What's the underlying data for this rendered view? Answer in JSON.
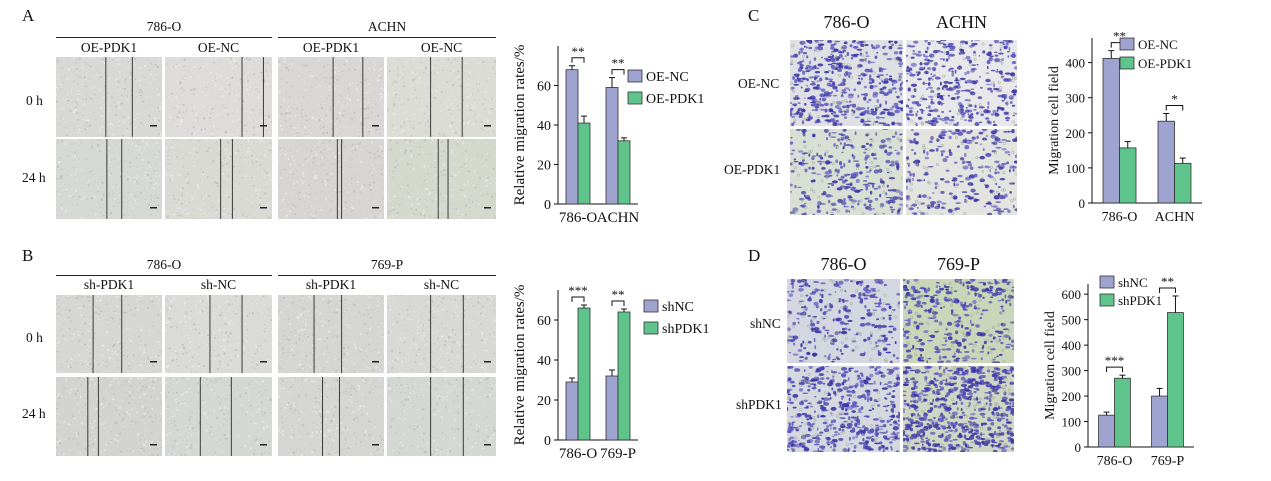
{
  "panels": {
    "A": {
      "label": "A",
      "groups": [
        "786-O",
        "ACHN"
      ],
      "cols": [
        "OE-PDK1",
        "OE-NC",
        "OE-PDK1",
        "OE-NC"
      ],
      "rows": [
        "0 h",
        "24 h"
      ]
    },
    "B": {
      "label": "B",
      "groups": [
        "786-O",
        "769-P"
      ],
      "cols": [
        "sh-PDK1",
        "sh-NC",
        "sh-PDK1",
        "sh-NC"
      ],
      "rows": [
        "0 h",
        "24 h"
      ]
    },
    "C": {
      "label": "C",
      "cols": [
        "786-O",
        "ACHN"
      ],
      "rows": [
        "OE-NC",
        "OE-PDK1"
      ]
    },
    "D": {
      "label": "D",
      "cols": [
        "786-O",
        "769-P"
      ],
      "rows": [
        "shNC",
        "shPDK1"
      ]
    }
  },
  "colors": {
    "blue": "#9ea3cf",
    "green": "#5ec48c",
    "stain": "#3a36a6"
  },
  "chart_data": [
    {
      "id": "A-chart",
      "type": "bar",
      "categories": [
        "786-O",
        "ACHN"
      ],
      "ylabel": "Relative migration rates/%",
      "ylim": [
        0,
        80
      ],
      "yticks": [
        0,
        20,
        40,
        60
      ],
      "series": [
        {
          "name": "OE-NC",
          "values": [
            68,
            59
          ],
          "errors": [
            2,
            5
          ],
          "color": "#9ea3cf"
        },
        {
          "name": "OE-PDK1",
          "values": [
            41,
            32
          ],
          "errors": [
            3.5,
            1.5
          ],
          "color": "#5ec48c"
        }
      ],
      "significance": [
        "**",
        "**"
      ],
      "legend": "top-right"
    },
    {
      "id": "B-chart",
      "type": "bar",
      "categories": [
        "786-O",
        "769-P"
      ],
      "ylabel": "Relative migration rates/%",
      "ylim": [
        0,
        75
      ],
      "yticks": [
        0,
        20,
        40,
        60
      ],
      "series": [
        {
          "name": "shNC",
          "values": [
            29,
            32
          ],
          "errors": [
            2,
            3
          ],
          "color": "#9ea3cf"
        },
        {
          "name": "shPDK1",
          "values": [
            66,
            64
          ],
          "errors": [
            1.5,
            1.5
          ],
          "color": "#5ec48c"
        }
      ],
      "significance": [
        "***",
        "**"
      ],
      "legend": "middle-right"
    },
    {
      "id": "C-chart",
      "type": "bar",
      "categories": [
        "786-O",
        "ACHN"
      ],
      "ylabel": "Migration cell field",
      "ylim": [
        0,
        470
      ],
      "yticks": [
        0,
        100,
        200,
        300,
        400
      ],
      "series": [
        {
          "name": "OE-NC",
          "values": [
            412,
            233
          ],
          "errors": [
            22,
            22
          ],
          "color": "#9ea3cf"
        },
        {
          "name": "OE-PDK1",
          "values": [
            157,
            113
          ],
          "errors": [
            18,
            15
          ],
          "color": "#5ec48c"
        }
      ],
      "significance": [
        "**",
        "*"
      ],
      "legend": "top-right"
    },
    {
      "id": "D-chart",
      "type": "bar",
      "categories": [
        "786-O",
        "769-P"
      ],
      "ylabel": "Migration cell field",
      "ylim": [
        0,
        640
      ],
      "yticks": [
        0,
        100,
        200,
        300,
        400,
        500,
        600
      ],
      "series": [
        {
          "name": "shNC",
          "values": [
            125,
            200
          ],
          "errors": [
            12,
            30
          ],
          "color": "#9ea3cf"
        },
        {
          "name": "shPDK1",
          "values": [
            270,
            528
          ],
          "errors": [
            12,
            65
          ],
          "color": "#5ec48c"
        }
      ],
      "significance": [
        "***",
        "**"
      ],
      "legend": "top-left"
    }
  ]
}
